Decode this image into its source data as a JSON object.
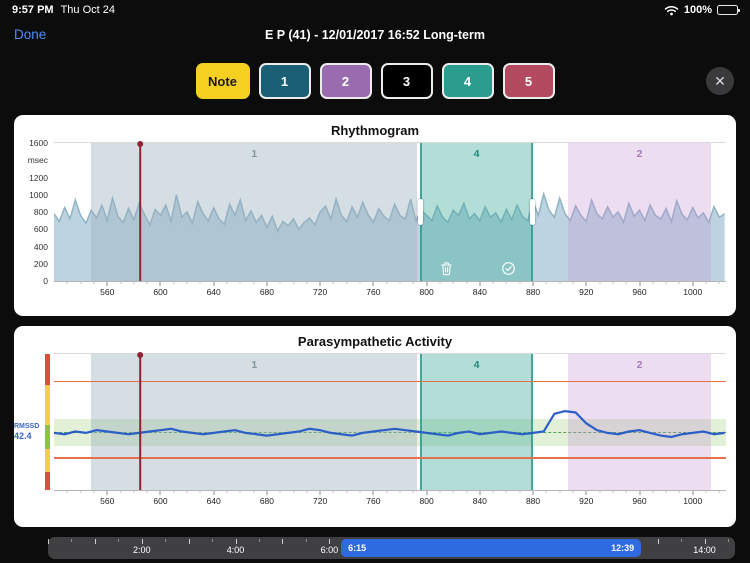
{
  "status_bar": {
    "time": "9:57 PM",
    "date": "Thu Oct 24",
    "battery": "100%"
  },
  "nav": {
    "done": "Done",
    "title": "E P (41) - 12/01/2017 16:52 Long-term"
  },
  "toolbar": {
    "note": {
      "label": "Note",
      "bg": "#F5D021",
      "fg": "#1b1b1d"
    },
    "tags": [
      {
        "label": "1",
        "bg": "#1B5F74"
      },
      {
        "label": "2",
        "bg": "#9A6BAE"
      },
      {
        "label": "3",
        "bg": "#000000"
      },
      {
        "label": "4",
        "bg": "#2A9D8F"
      },
      {
        "label": "5",
        "bg": "#B34A60"
      }
    ],
    "close": "✕"
  },
  "chart_data": [
    {
      "type": "area",
      "title": "Rhythmogram",
      "xlabel": "",
      "ylabel": "msec",
      "x_range": [
        520,
        1025
      ],
      "y_range": [
        0,
        1600
      ],
      "x_start": 520,
      "x_step": 4,
      "x_ticks": [
        560,
        600,
        640,
        680,
        720,
        760,
        800,
        840,
        880,
        920,
        960,
        1000
      ],
      "y_ticks": [
        {
          "v": 1600,
          "t": "1600"
        },
        {
          "v": 1400,
          "t": "msec"
        },
        {
          "v": 1200,
          "t": "1200"
        },
        {
          "v": 1000,
          "t": "1000"
        },
        {
          "v": 800,
          "t": "800"
        },
        {
          "v": 600,
          "t": "600"
        },
        {
          "v": 400,
          "t": "400"
        },
        {
          "v": 200,
          "t": "200"
        },
        {
          "v": 0,
          "t": "0"
        }
      ],
      "values": [
        780,
        690,
        850,
        720,
        940,
        760,
        670,
        820,
        730,
        880,
        700,
        960,
        750,
        680,
        840,
        710,
        900,
        770,
        650,
        830,
        760,
        880,
        690,
        1000,
        740,
        800,
        670,
        920,
        780,
        700,
        850,
        720,
        660,
        890,
        760,
        940,
        700,
        810,
        680,
        760,
        620,
        750,
        580,
        690,
        640,
        720,
        600,
        680,
        730,
        650,
        800,
        870,
        720,
        950,
        760,
        690,
        860,
        740,
        910,
        770,
        680,
        840,
        750,
        700,
        890,
        760,
        720,
        950,
        700,
        820,
        760,
        700,
        870,
        740,
        680,
        820,
        760,
        900,
        720,
        780,
        700,
        860,
        740,
        790,
        680,
        830,
        710,
        880,
        750,
        700,
        920,
        760,
        1010,
        820,
        740,
        960,
        780,
        700,
        870,
        760,
        690,
        940,
        780,
        720,
        860,
        740,
        800,
        680,
        900,
        750,
        820,
        700,
        880,
        760,
        720,
        840,
        690,
        930,
        770,
        710,
        850,
        730,
        790,
        680,
        860,
        740,
        780
      ],
      "line_color": "#8fb3c6",
      "fill_color": "#bdd4e0",
      "cursor_x": 585,
      "cursor_color": "#8e2433",
      "show_region_tools": true,
      "regions": [
        {
          "label": "1",
          "start": 548,
          "end": 793,
          "color": "rgba(156,176,188,0.42)",
          "label_color": "#8295a1"
        },
        {
          "label": "4",
          "start": 795,
          "end": 880,
          "color": "rgba(64,172,158,0.40)",
          "label_color": "#1f8a7d",
          "active": true
        },
        {
          "label": "2",
          "start": 906,
          "end": 1014,
          "color": "rgba(197,149,212,0.32)",
          "label_color": "#a87cba"
        }
      ]
    },
    {
      "type": "line",
      "title": "Parasympathetic Activity",
      "xlabel": "",
      "ylabel": "",
      "x_range": [
        520,
        1025
      ],
      "y_range": [
        0,
        100
      ],
      "x_start": 520,
      "x_step": 8,
      "x_ticks": [
        560,
        600,
        640,
        680,
        720,
        760,
        800,
        840,
        880,
        920,
        960,
        1000
      ],
      "y_ticks": [],
      "values": [
        42,
        41,
        43,
        42,
        44,
        43,
        42,
        41,
        42,
        43,
        44,
        45,
        43,
        42,
        41,
        42,
        43,
        44,
        42,
        41,
        40,
        41,
        42,
        43,
        45,
        44,
        42,
        41,
        40,
        42,
        43,
        44,
        45,
        44,
        43,
        42,
        41,
        40,
        42,
        43,
        41,
        42,
        43,
        42,
        41,
        42,
        43,
        56,
        58,
        57,
        49,
        44,
        42,
        41,
        43,
        44,
        42,
        40,
        39,
        41,
        42,
        43,
        41,
        42
      ],
      "line_color": "#2b5fc7",
      "cursor_x": 585,
      "cursor_color": "#8e2433",
      "show_region_tools": false,
      "marker": {
        "label": "RMSSD",
        "value": "42.4",
        "y": 43
      },
      "band": {
        "from": 32,
        "to": 52,
        "color": "rgba(154,205,120,0.30)",
        "center": 42.5,
        "center_color": "#57a05a"
      },
      "thresholds": [
        {
          "y": 80,
          "color": "#e4714e"
        },
        {
          "y": 24,
          "color": "#e4714e"
        }
      ],
      "zone_strip": [
        {
          "from": 77,
          "to": 100,
          "color": "#e04b3f"
        },
        {
          "from": 48,
          "to": 77,
          "color": "#f3d23b"
        },
        {
          "from": 30,
          "to": 48,
          "color": "#8bc34a"
        },
        {
          "from": 13,
          "to": 30,
          "color": "#f3d23b"
        },
        {
          "from": 0,
          "to": 13,
          "color": "#e04b3f"
        }
      ],
      "regions": [
        {
          "label": "1",
          "start": 548,
          "end": 793,
          "color": "rgba(156,176,188,0.42)",
          "label_color": "#8295a1"
        },
        {
          "label": "4",
          "start": 795,
          "end": 880,
          "color": "rgba(64,172,158,0.40)",
          "label_color": "#1f8a7d",
          "active": true
        },
        {
          "label": "2",
          "start": 906,
          "end": 1014,
          "color": "rgba(197,149,212,0.32)",
          "label_color": "#a87cba"
        }
      ]
    }
  ],
  "timeline": {
    "start_h": 0,
    "end_h": 14.65,
    "labels": [
      {
        "h": 2,
        "text": "2:00"
      },
      {
        "h": 4,
        "text": "4:00"
      },
      {
        "h": 6,
        "text": "6:00"
      },
      {
        "h": 14,
        "text": "14:00"
      }
    ],
    "selection": {
      "start_h": 6.25,
      "end_h": 12.65,
      "start_label": "6:15",
      "end_label": "12:39"
    }
  }
}
